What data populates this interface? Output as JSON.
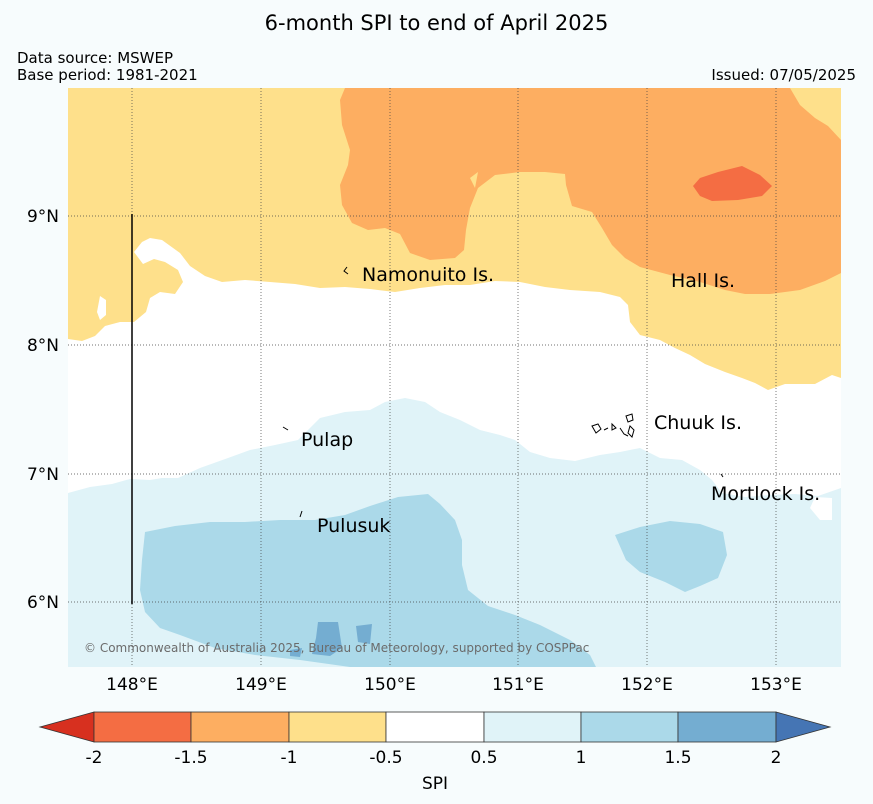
{
  "title": "6-month SPI to end of April 2025",
  "data_source": "Data source: MSWEP",
  "base_period": "Base period: 1981-2021",
  "issued": "Issued: 07/05/2025",
  "copyright": "© Commonwealth of Australia 2025, Bureau of Meteorology, supported by COSPPac",
  "lat_labels": [
    "9°N",
    "8°N",
    "7°N",
    "6°N"
  ],
  "lon_labels": [
    "148°E",
    "149°E",
    "150°E",
    "151°E",
    "152°E",
    "153°E"
  ],
  "places": {
    "namonuito": "Namonuito Is.",
    "hall": "Hall Is.",
    "chuuk": "Chuuk Is.",
    "pulap": "Pulap",
    "pulusuk": "Pulusuk",
    "mortlock": "Mortlock Is."
  },
  "colorbar": {
    "label": "SPI",
    "ticks": [
      "-2",
      "-1.5",
      "-1",
      "-0.5",
      "0.5",
      "1",
      "1.5",
      "2"
    ],
    "colors": {
      "below_-2": "#d7301f",
      "-2_to_-1.5": "#f46d43",
      "-1.5_to_-1": "#fdae61",
      "-1_to_-0.5": "#fee08b",
      "-0.5_to_0.5": "#ffffff",
      "0.5_to_1": "#e0f3f8",
      "1_to_1.5": "#abd9e9",
      "1.5_to_2": "#74add1",
      "above_2": "#4575b4"
    }
  }
}
